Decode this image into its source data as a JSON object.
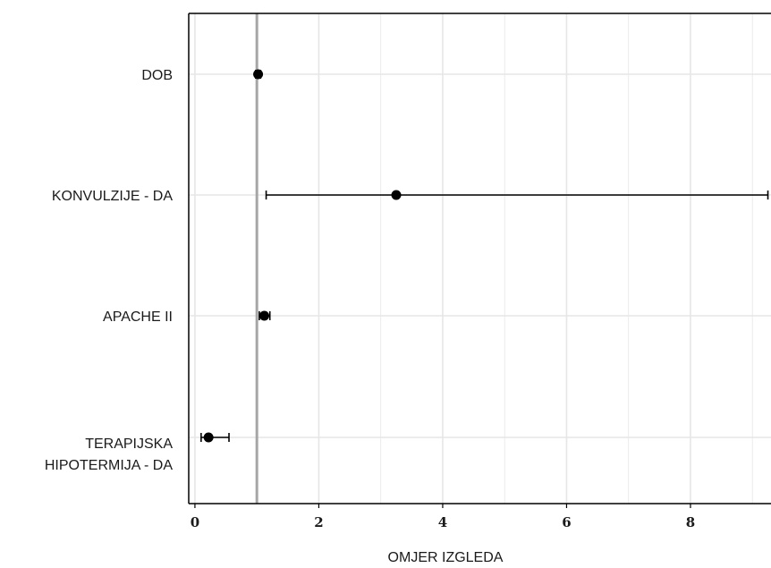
{
  "chart_data": {
    "type": "forest",
    "title": "",
    "xlabel": "OMJER IZGLEDA",
    "ylabel": "",
    "xlim": [
      -0.1,
      9.3
    ],
    "xticks": [
      0,
      2,
      4,
      6,
      8
    ],
    "xtick_labels": [
      "0",
      "2",
      "4",
      "6",
      "8"
    ],
    "reference_line": 1,
    "grid": true,
    "categories": [
      {
        "lines": [
          "DOB"
        ],
        "estimate": 1.02,
        "ci": [
          0.98,
          1.06
        ]
      },
      {
        "lines": [
          "KONVULZIJE - DA"
        ],
        "estimate": 3.25,
        "ci": [
          1.15,
          9.25
        ]
      },
      {
        "lines": [
          "APACHE II"
        ],
        "estimate": 1.12,
        "ci": [
          1.04,
          1.21
        ]
      },
      {
        "lines": [
          "TERAPIJSKA",
          "HIPOTERMIJA - DA"
        ],
        "estimate": 0.22,
        "ci": [
          0.1,
          0.55
        ]
      }
    ]
  },
  "colors": {
    "points": "#000000",
    "reference_line": "#a6a6a6",
    "grid": "#e6e6e6",
    "frame": "#000000"
  }
}
